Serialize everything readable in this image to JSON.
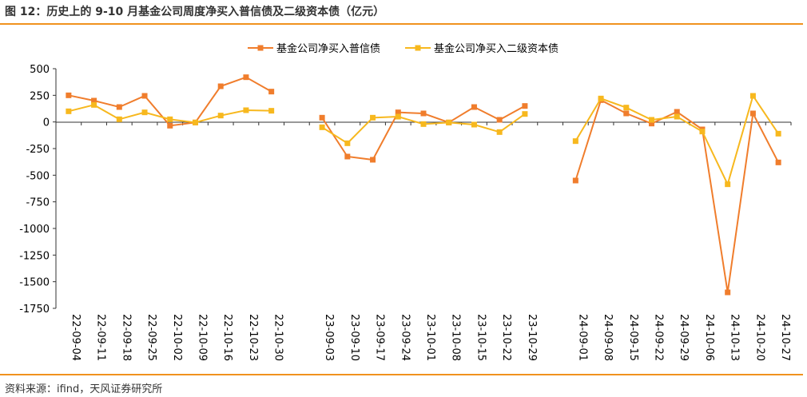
{
  "title": "图 12：历史上的 9-10 月基金公司周度净买入普信债及二级资本债（亿元）",
  "source": "资料来源：ifind，天风证券研究所",
  "chart_data": {
    "type": "line",
    "title": "",
    "xlabel": "",
    "ylabel": "",
    "ylim": [
      -1750,
      500
    ],
    "yticks": [
      500,
      250,
      0,
      -250,
      -500,
      -750,
      -1000,
      -1250,
      -1500,
      -1750
    ],
    "grid": false,
    "legend": "top-center",
    "categories": [
      "22-09-04",
      "22-09-11",
      "22-09-18",
      "22-09-25",
      "22-10-02",
      "22-10-09",
      "22-10-16",
      "22-10-23",
      "22-10-30",
      null,
      "23-09-03",
      "23-09-10",
      "23-09-17",
      "23-09-24",
      "23-10-01",
      "23-10-08",
      "23-10-15",
      "23-10-22",
      "23-10-29",
      null,
      "24-09-01",
      "24-09-08",
      "24-09-15",
      "24-09-22",
      "24-09-29",
      "24-10-06",
      "24-10-13",
      "24-10-20",
      "24-10-27"
    ],
    "series": [
      {
        "name": "基金公司净买入普信债",
        "color": "#f07d2c",
        "marker": "square",
        "values": [
          250,
          200,
          140,
          245,
          -35,
          -5,
          335,
          420,
          285,
          null,
          40,
          -325,
          -355,
          90,
          80,
          -5,
          140,
          20,
          150,
          null,
          -550,
          205,
          80,
          -15,
          95,
          -70,
          -1600,
          80,
          -380
        ]
      },
      {
        "name": "基金公司净买入二级资本债",
        "color": "#f7b81e",
        "marker": "square",
        "values": [
          100,
          160,
          25,
          90,
          25,
          -5,
          60,
          110,
          105,
          null,
          -50,
          -200,
          40,
          50,
          -20,
          -5,
          -25,
          -95,
          75,
          null,
          -180,
          220,
          135,
          20,
          50,
          -90,
          -585,
          245,
          -110
        ]
      }
    ]
  }
}
